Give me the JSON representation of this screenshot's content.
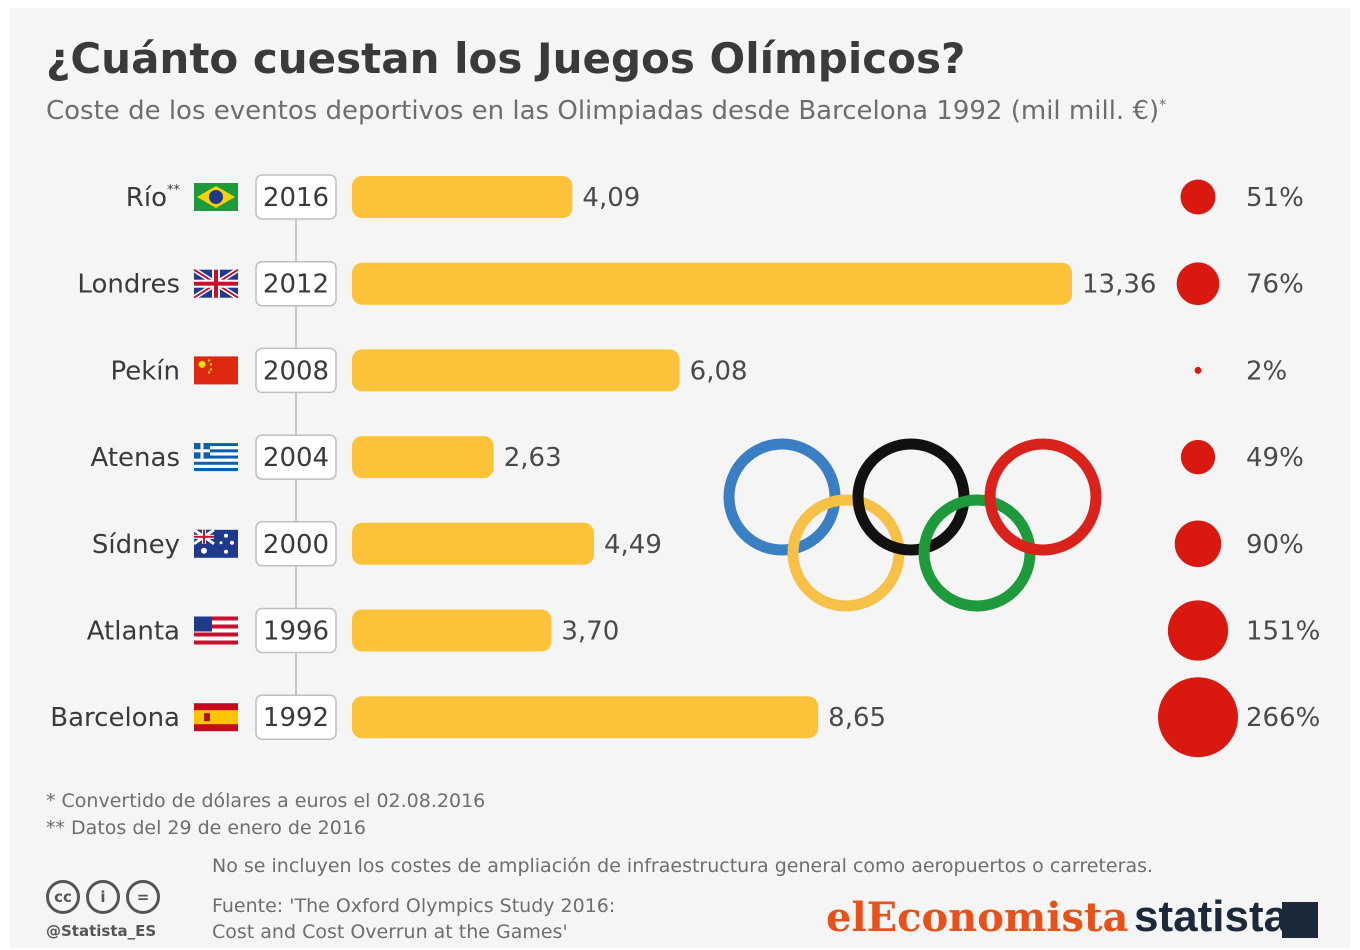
{
  "title": "¿Cuánto cuestan los Juegos Olímpicos?",
  "subtitle": "Coste de los eventos deportivos en las Olimpiadas desde Barcelona 1992 (mil mill. €)",
  "subtitle_mark": "*",
  "chart_data": {
    "type": "bar",
    "orientation": "horizontal",
    "title": "¿Cuánto cuestan los Juegos Olímpicos?",
    "subtitle": "Coste de los eventos deportivos en las Olimpiadas desde Barcelona 1992 (mil mill. €)*",
    "categories": [
      "Río",
      "Londres",
      "Pekín",
      "Atenas",
      "Sídney",
      "Atlanta",
      "Barcelona"
    ],
    "category_marks": [
      "**",
      "",
      "",
      "",
      "",
      "",
      ""
    ],
    "years": [
      "2016",
      "2012",
      "2008",
      "2004",
      "2000",
      "1996",
      "1992"
    ],
    "values": [
      4.09,
      13.36,
      6.08,
      2.63,
      4.49,
      3.7,
      8.65
    ],
    "value_labels": [
      "4,09",
      "13,36",
      "6,08",
      "2,63",
      "4,49",
      "3,70",
      "8,65"
    ],
    "overrun_pct": [
      51,
      76,
      2,
      49,
      90,
      151,
      266
    ],
    "overrun_labels": [
      "51%",
      "76%",
      "2%",
      "49%",
      "90%",
      "151%",
      "266%"
    ],
    "flags": [
      "brazil-flag-icon",
      "uk-flag-icon",
      "china-flag-icon",
      "greece-flag-icon",
      "australia-flag-icon",
      "usa-flag-icon",
      "spain-flag-icon"
    ],
    "bar_color": "#fcc33a",
    "circle_color": "#d9180f"
  },
  "notes": {
    "note1": "*   Convertido de dólares a euros el 02.08.2016",
    "note2": "** Datos del 29 de enero de 2016",
    "note3": "No se incluyen los costes de ampliación de infraestructura general como aeropuertos o carreteras."
  },
  "source": {
    "line1": "Fuente: 'The Oxford Olympics Study 2016:",
    "line2": "Cost and Cost Overrun at the Games'"
  },
  "footer": {
    "handle": "@Statista_ES",
    "cc_icons": [
      "cc-icon",
      "attribution-icon",
      "no-derivatives-icon"
    ],
    "cc_glyphs": [
      "cc",
      "i",
      "="
    ],
    "logo_eleconomista": "elEconomista",
    "logo_statista": "statista"
  },
  "colors": {
    "ring_blue": "#3a7fc4",
    "ring_yellow": "#f7c046",
    "ring_black": "#111111",
    "ring_green": "#1e9a3c",
    "ring_red": "#d9221b"
  }
}
